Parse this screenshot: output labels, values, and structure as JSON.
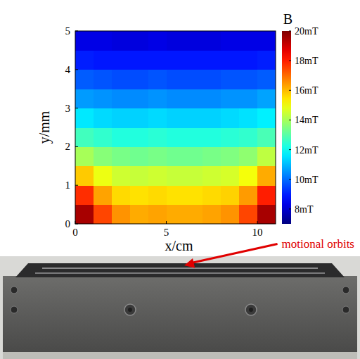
{
  "chart_data": {
    "type": "heatmap",
    "xlabel": "x/cm",
    "ylabel": "y/mm",
    "xlim": [
      0,
      11
    ],
    "ylim": [
      0,
      5
    ],
    "xticks": [
      0,
      5,
      10
    ],
    "yticks": [
      0,
      1,
      2,
      3,
      4,
      5
    ],
    "x": [
      0.5,
      1.5,
      2.5,
      3.5,
      4.5,
      5.5,
      6.5,
      7.5,
      8.5,
      9.5,
      10.5
    ],
    "y": [
      0.25,
      0.75,
      1.25,
      1.75,
      2.25,
      2.75,
      3.25,
      3.75,
      4.25,
      4.75
    ],
    "values": [
      [
        19.5,
        17.5,
        16.5,
        16.2,
        16.3,
        16.2,
        16.2,
        16.3,
        16.5,
        17.5,
        19.5
      ],
      [
        17.8,
        16.3,
        15.6,
        15.5,
        15.6,
        15.5,
        15.5,
        15.6,
        15.7,
        16.4,
        18.0
      ],
      [
        15.8,
        14.9,
        14.5,
        14.4,
        14.5,
        14.4,
        14.4,
        14.5,
        14.6,
        15.0,
        16.2
      ],
      [
        14.0,
        13.6,
        13.4,
        13.3,
        13.4,
        13.3,
        13.3,
        13.4,
        13.5,
        13.7,
        14.3
      ],
      [
        12.7,
        12.5,
        12.3,
        12.3,
        12.4,
        12.3,
        12.3,
        12.3,
        12.4,
        12.5,
        12.8
      ],
      [
        11.6,
        11.4,
        11.3,
        11.3,
        11.4,
        11.3,
        11.3,
        11.3,
        11.4,
        11.5,
        11.7
      ],
      [
        10.6,
        10.5,
        10.4,
        10.4,
        10.5,
        10.4,
        10.4,
        10.4,
        10.5,
        10.5,
        10.7
      ],
      [
        9.8,
        9.7,
        9.6,
        9.6,
        9.7,
        9.6,
        9.6,
        9.6,
        9.7,
        9.7,
        9.8
      ],
      [
        9.0,
        8.9,
        8.9,
        8.9,
        8.9,
        8.9,
        8.9,
        8.9,
        8.9,
        8.9,
        9.0
      ],
      [
        8.3,
        8.3,
        8.2,
        8.2,
        8.3,
        8.2,
        8.2,
        8.2,
        8.3,
        8.3,
        8.3
      ]
    ],
    "colorbar": {
      "title": "B",
      "range": [
        7,
        20
      ],
      "ticks": [
        {
          "value": 8,
          "label": "8mT"
        },
        {
          "value": 10,
          "label": "10mT"
        },
        {
          "value": 12,
          "label": "12mT"
        },
        {
          "value": 14,
          "label": "14mT"
        },
        {
          "value": 16,
          "label": "16mT"
        },
        {
          "value": 18,
          "label": "18mT"
        },
        {
          "value": 20,
          "label": "20mT"
        }
      ]
    },
    "annotation": "motional orbits"
  }
}
